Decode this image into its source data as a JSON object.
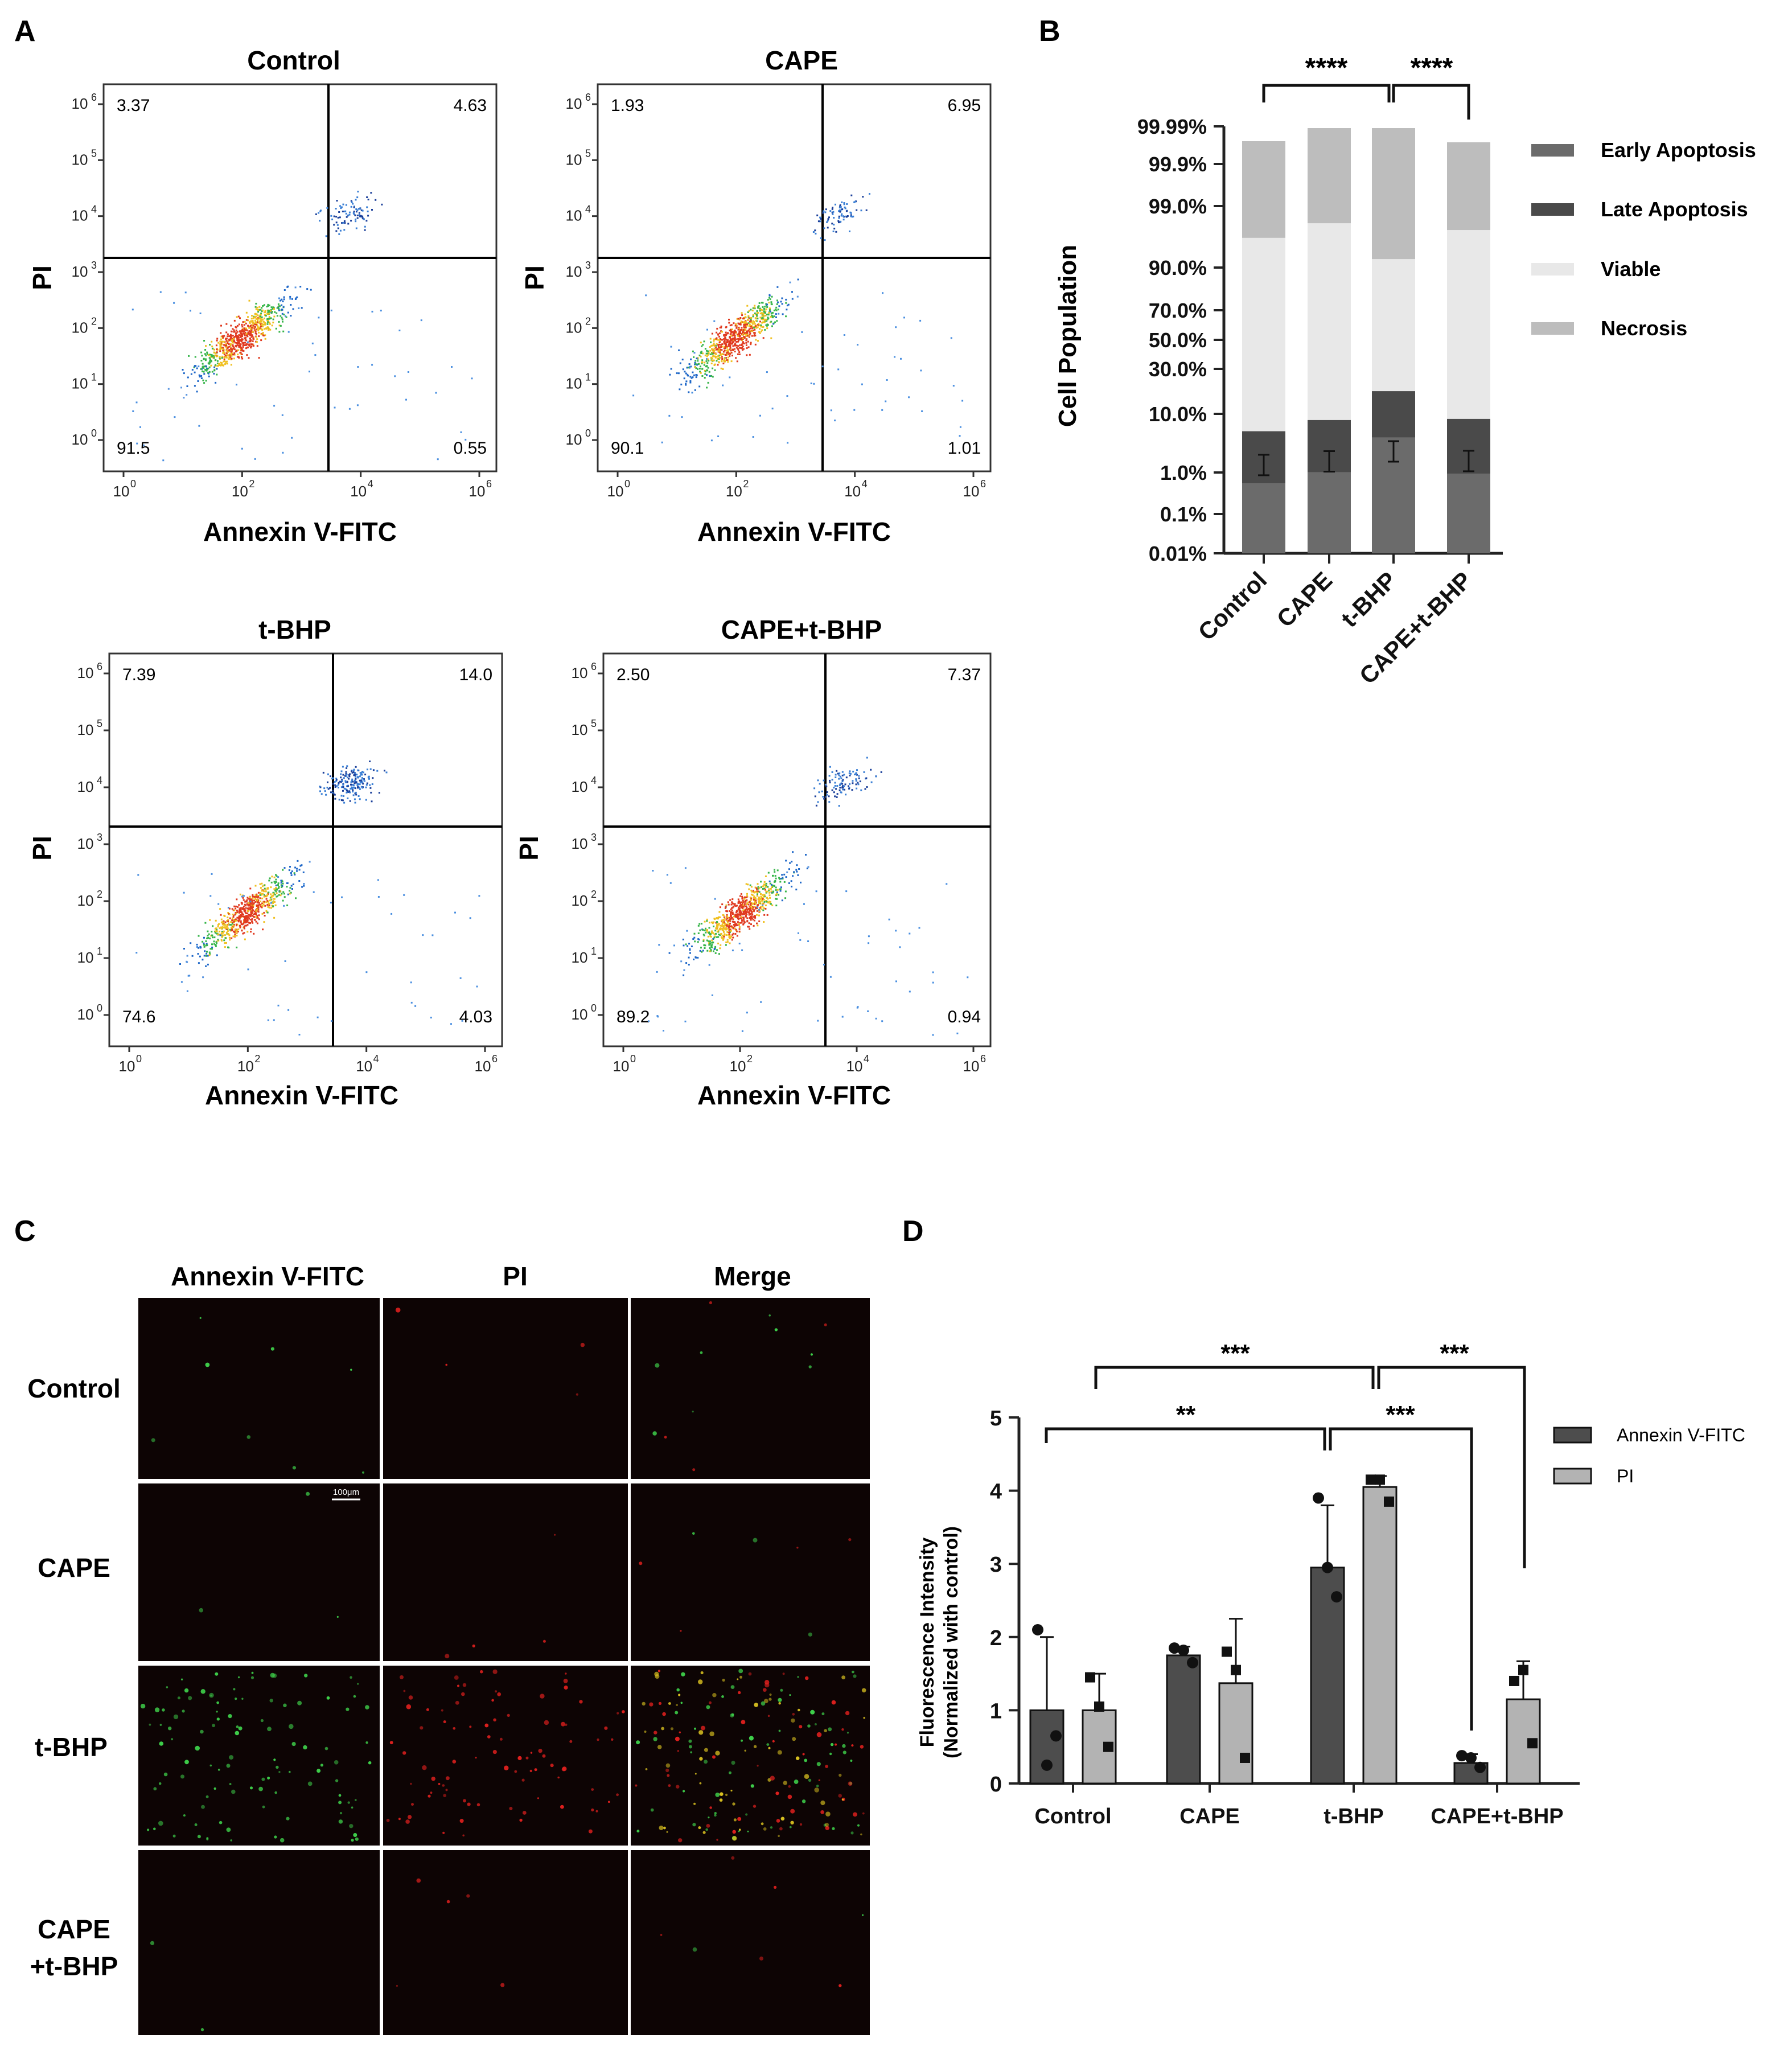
{
  "panel_labels": {
    "a": "A",
    "b": "B",
    "c": "C",
    "d": "D"
  },
  "colors": {
    "early": "#6b6b6b",
    "late": "#4a4a4a",
    "viable": "#e8e8e8",
    "necrosis": "#bdbdbd",
    "annexin_bar": "#4d4d4d",
    "pi_bar": "#b3b3b3",
    "cell_green": "#3ecf4a",
    "cell_red": "#e0201e"
  },
  "chart_data": [
    {
      "type": "scatter",
      "panel": "A",
      "description": "flow cytometry density plots (Annexin V-FITC vs PI), log scale",
      "xlabel": "Annexin V-FITC",
      "ylabel": "PI",
      "tick_exponents": [
        "0",
        "1",
        "2",
        "3",
        "4",
        "5",
        "6"
      ],
      "x_tick_exponents": [
        "0",
        "2",
        "4",
        "6"
      ],
      "tick_base": "10",
      "plots": [
        {
          "title": "Control",
          "quadrants": {
            "ul": "3.37",
            "ur": "4.63",
            "ll": "91.5",
            "lr": "0.55"
          }
        },
        {
          "title": "CAPE",
          "quadrants": {
            "ul": "1.93",
            "ur": "6.95",
            "ll": "90.1",
            "lr": "1.01"
          }
        },
        {
          "title": "t-BHP",
          "quadrants": {
            "ul": "7.39",
            "ur": "14.0",
            "ll": "74.6",
            "lr": "4.03"
          }
        },
        {
          "title": "CAPE+t-BHP",
          "quadrants": {
            "ul": "2.50",
            "ur": "7.37",
            "ll": "89.2",
            "lr": "0.94"
          }
        }
      ]
    },
    {
      "type": "bar",
      "panel": "B",
      "stacked": true,
      "ylabel": "Cell Population",
      "y_ticks": [
        "99.99%",
        "99.9%",
        "99.0%",
        "90.0%",
        "70.0%",
        "50.0%",
        "30.0%",
        "10.0%",
        "1.0%",
        "0.1%",
        "0.01%"
      ],
      "categories": [
        "Control",
        "CAPE",
        "t-BHP",
        "CAPE+t-BHP"
      ],
      "legend": [
        "Early Apoptosis",
        "Late Apoptosis",
        "Viable",
        "Necrosis"
      ],
      "series": [
        {
          "name": "Early Apoptosis",
          "values": [
            0.55,
            1.01,
            4.03,
            0.94
          ]
        },
        {
          "name": "Late Apoptosis",
          "values": [
            4.63,
            6.95,
            14.0,
            7.37
          ]
        },
        {
          "name": "Viable",
          "values": [
            91.5,
            90.1,
            74.6,
            89.2
          ]
        },
        {
          "name": "Necrosis",
          "values": [
            3.37,
            1.93,
            7.39,
            2.5
          ]
        }
      ],
      "significance": [
        {
          "from": "Control",
          "to": "t-BHP",
          "label": "****"
        },
        {
          "from": "t-BHP",
          "to": "CAPE+t-BHP",
          "label": "****"
        }
      ]
    },
    {
      "type": "bar",
      "panel": "D",
      "ylabel": "Fluorescence Intensity",
      "ylabel2": "(Normalized with control)",
      "ylim": [
        0,
        5
      ],
      "y_ticks": [
        "0",
        "1",
        "2",
        "3",
        "4",
        "5"
      ],
      "categories": [
        "Control",
        "CAPE",
        "t-BHP",
        "CAPE+t-BHP"
      ],
      "legend": [
        "Annexin V-FITC",
        "PI"
      ],
      "series": [
        {
          "name": "Annexin V-FITC",
          "values": [
            1.0,
            1.75,
            2.95,
            0.28
          ],
          "errors": [
            1.0,
            0.12,
            0.85,
            0.12
          ],
          "points": [
            [
              2.1,
              0.25,
              0.65
            ],
            [
              1.85,
              1.82,
              1.65
            ],
            [
              3.9,
              2.95,
              2.55
            ],
            [
              0.38,
              0.35,
              0.22
            ]
          ]
        },
        {
          "name": "PI",
          "values": [
            1.0,
            1.37,
            4.05,
            1.15
          ],
          "errors": [
            0.5,
            0.88,
            0.15,
            0.52
          ],
          "points": [
            [
              1.45,
              1.05,
              0.5
            ],
            [
              1.8,
              1.55,
              0.35
            ],
            [
              4.15,
              4.15,
              3.85
            ],
            [
              1.4,
              1.55,
              0.55
            ]
          ]
        }
      ],
      "significance": [
        {
          "label": "***",
          "from_cat": 0,
          "to_cat": 2
        },
        {
          "label": "***",
          "from_cat": 2,
          "to_cat": 3
        },
        {
          "label": "**",
          "from_cat": 0,
          "to_cat": 2
        },
        {
          "label": "***",
          "from_cat": 2,
          "to_cat": 3
        }
      ]
    }
  ],
  "microscopy": {
    "columns": [
      "Annexin V-FITC",
      "PI",
      "Merge"
    ],
    "rows": [
      "Control",
      "CAPE",
      "t-BHP",
      "CAPE",
      "+t-BHP"
    ],
    "scale_bar": "100μm"
  }
}
